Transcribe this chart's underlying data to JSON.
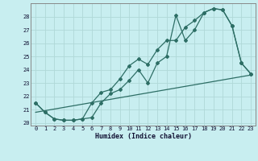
{
  "xlabel": "Humidex (Indice chaleur)",
  "bg_color": "#c8eef0",
  "grid_color": "#b0d8d8",
  "line_color": "#2d6e65",
  "xlim": [
    -0.5,
    23.5
  ],
  "ylim": [
    19.8,
    29.0
  ],
  "yticks": [
    20,
    21,
    22,
    23,
    24,
    25,
    26,
    27,
    28
  ],
  "xticks": [
    0,
    1,
    2,
    3,
    4,
    5,
    6,
    7,
    8,
    9,
    10,
    11,
    12,
    13,
    14,
    15,
    16,
    17,
    18,
    19,
    20,
    21,
    22,
    23
  ],
  "line1_x": [
    0,
    1,
    2,
    3,
    4,
    5,
    6,
    7,
    8,
    9,
    10,
    11,
    12,
    13,
    14,
    15,
    16,
    17,
    18,
    19,
    20,
    21,
    22,
    23
  ],
  "line1_y": [
    21.5,
    20.8,
    20.3,
    20.2,
    20.2,
    20.3,
    20.4,
    21.5,
    22.2,
    22.5,
    23.2,
    24.0,
    23.0,
    24.5,
    25.0,
    28.1,
    26.2,
    27.0,
    28.3,
    28.6,
    28.5,
    27.3,
    24.5,
    23.7
  ],
  "line2_x": [
    0,
    1,
    2,
    3,
    4,
    5,
    6,
    7,
    8,
    9,
    10,
    11,
    12,
    13,
    14,
    15,
    16,
    17,
    18,
    19,
    20,
    21,
    22,
    23
  ],
  "line2_y": [
    21.5,
    20.8,
    20.3,
    20.2,
    20.2,
    20.3,
    21.5,
    22.3,
    22.5,
    23.3,
    24.3,
    24.8,
    24.4,
    25.5,
    26.2,
    26.2,
    27.2,
    27.7,
    28.3,
    28.6,
    28.5,
    27.3,
    24.5,
    23.7
  ],
  "line3_x": [
    0,
    23
  ],
  "line3_y": [
    20.8,
    23.6
  ]
}
